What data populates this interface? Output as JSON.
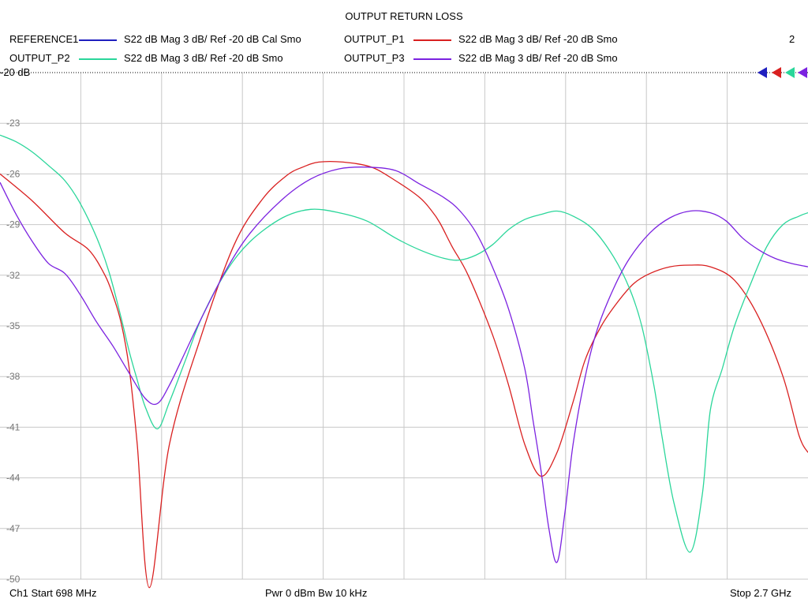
{
  "chart_data": {
    "type": "line",
    "title": "OUTPUT RETURN LOSS",
    "ref_label": "-20 dB",
    "ylim": [
      -50,
      -20
    ],
    "y_ticks": [
      -23,
      -26,
      -29,
      -32,
      -35,
      -38,
      -41,
      -44,
      -47,
      -50
    ],
    "xlim_ghz": [
      0.698,
      2.7
    ],
    "x_divisions": 10,
    "marker_number": "2",
    "series": [
      {
        "name": "REFERENCE1",
        "desc": "S22  dB Mag  3 dB/ Ref -20 dB  Cal Smo",
        "color": "#1f1fbf",
        "x": [],
        "y": []
      },
      {
        "name": "OUTPUT_P1",
        "desc": "S22  dB Mag  3 dB/ Ref -20 dB  Smo",
        "color": "#d92020",
        "x": [
          0.698,
          0.778,
          0.859,
          0.918,
          0.958,
          0.978,
          0.998,
          1.018,
          1.038,
          1.068,
          1.118,
          1.198,
          1.278,
          1.348,
          1.408,
          1.448,
          1.488,
          1.548,
          1.618,
          1.678,
          1.738,
          1.768,
          1.788,
          1.818,
          1.858,
          1.918,
          1.958,
          1.998,
          2.038,
          2.078,
          2.118,
          2.148,
          2.188,
          2.228,
          2.268,
          2.308,
          2.358,
          2.408,
          2.458,
          2.518,
          2.578,
          2.638,
          2.678,
          2.7
        ],
        "y": [
          -26.0,
          -27.6,
          -29.5,
          -30.5,
          -32.0,
          -33.2,
          -34.8,
          -37.5,
          -42.0,
          -50.5,
          -42.0,
          -35.5,
          -30.2,
          -27.5,
          -26.1,
          -25.6,
          -25.3,
          -25.3,
          -25.6,
          -26.4,
          -27.4,
          -28.2,
          -28.9,
          -30.3,
          -32.0,
          -35.5,
          -38.5,
          -42.0,
          -43.9,
          -42.5,
          -39.5,
          -37.0,
          -35.0,
          -33.6,
          -32.5,
          -31.9,
          -31.5,
          -31.4,
          -31.5,
          -32.3,
          -34.5,
          -38.0,
          -41.5,
          -42.5
        ]
      },
      {
        "name": "OUTPUT_P2",
        "desc": "S22  dB Mag  3 dB/ Ref -20 dB  Smo",
        "color": "#2ad69a",
        "x": [
          0.698,
          0.738,
          0.778,
          0.818,
          0.859,
          0.898,
          0.938,
          0.968,
          0.998,
          1.018,
          1.038,
          1.058,
          1.088,
          1.118,
          1.158,
          1.198,
          1.258,
          1.318,
          1.398,
          1.468,
          1.538,
          1.608,
          1.678,
          1.738,
          1.798,
          1.838,
          1.878,
          1.918,
          1.958,
          1.998,
          2.038,
          2.078,
          2.118,
          2.168,
          2.218,
          2.258,
          2.288,
          2.318,
          2.338,
          2.368,
          2.408,
          2.438,
          2.458,
          2.488,
          2.518,
          2.558,
          2.598,
          2.638,
          2.678,
          2.7
        ],
        "y": [
          -23.7,
          -24.1,
          -24.7,
          -25.5,
          -26.4,
          -27.8,
          -29.8,
          -31.8,
          -34.5,
          -36.5,
          -38.2,
          -39.8,
          -41.1,
          -39.5,
          -37.0,
          -34.5,
          -31.8,
          -30.0,
          -28.6,
          -28.1,
          -28.3,
          -28.8,
          -29.8,
          -30.5,
          -31.0,
          -31.1,
          -30.8,
          -30.2,
          -29.3,
          -28.7,
          -28.4,
          -28.2,
          -28.5,
          -29.3,
          -30.9,
          -32.8,
          -35.0,
          -38.5,
          -41.5,
          -45.5,
          -48.4,
          -45.0,
          -40.0,
          -37.5,
          -35.0,
          -32.5,
          -30.3,
          -29.0,
          -28.5,
          -28.3
        ]
      },
      {
        "name": "OUTPUT_P3",
        "desc": "S22  dB Mag  3 dB/ Ref -20 dB  Smo",
        "color": "#7b22e0",
        "x": [
          0.698,
          0.738,
          0.778,
          0.818,
          0.859,
          0.898,
          0.938,
          0.978,
          1.018,
          1.058,
          1.088,
          1.118,
          1.158,
          1.198,
          1.258,
          1.318,
          1.398,
          1.468,
          1.538,
          1.608,
          1.678,
          1.738,
          1.798,
          1.838,
          1.878,
          1.918,
          1.958,
          1.998,
          2.018,
          2.038,
          2.058,
          2.078,
          2.098,
          2.118,
          2.148,
          2.178,
          2.218,
          2.258,
          2.308,
          2.358,
          2.408,
          2.458,
          2.498,
          2.538,
          2.578,
          2.618,
          2.658,
          2.7
        ],
        "y": [
          -26.5,
          -28.4,
          -30.0,
          -31.3,
          -31.9,
          -33.2,
          -34.8,
          -36.2,
          -37.8,
          -39.3,
          -39.6,
          -38.5,
          -36.5,
          -34.5,
          -31.7,
          -29.5,
          -27.5,
          -26.3,
          -25.7,
          -25.6,
          -25.8,
          -26.6,
          -27.4,
          -28.2,
          -29.5,
          -31.5,
          -34.0,
          -37.5,
          -40.5,
          -43.5,
          -47.0,
          -49.0,
          -46.0,
          -42.0,
          -38.0,
          -35.2,
          -32.8,
          -31.0,
          -29.5,
          -28.6,
          -28.2,
          -28.3,
          -28.8,
          -29.8,
          -30.5,
          -31.0,
          -31.3,
          -31.5
        ]
      }
    ]
  },
  "footer": {
    "start": "Ch1  Start  698 MHz",
    "center": "Pwr  0 dBm  Bw  10 kHz",
    "stop": "Stop  2.7 GHz"
  }
}
